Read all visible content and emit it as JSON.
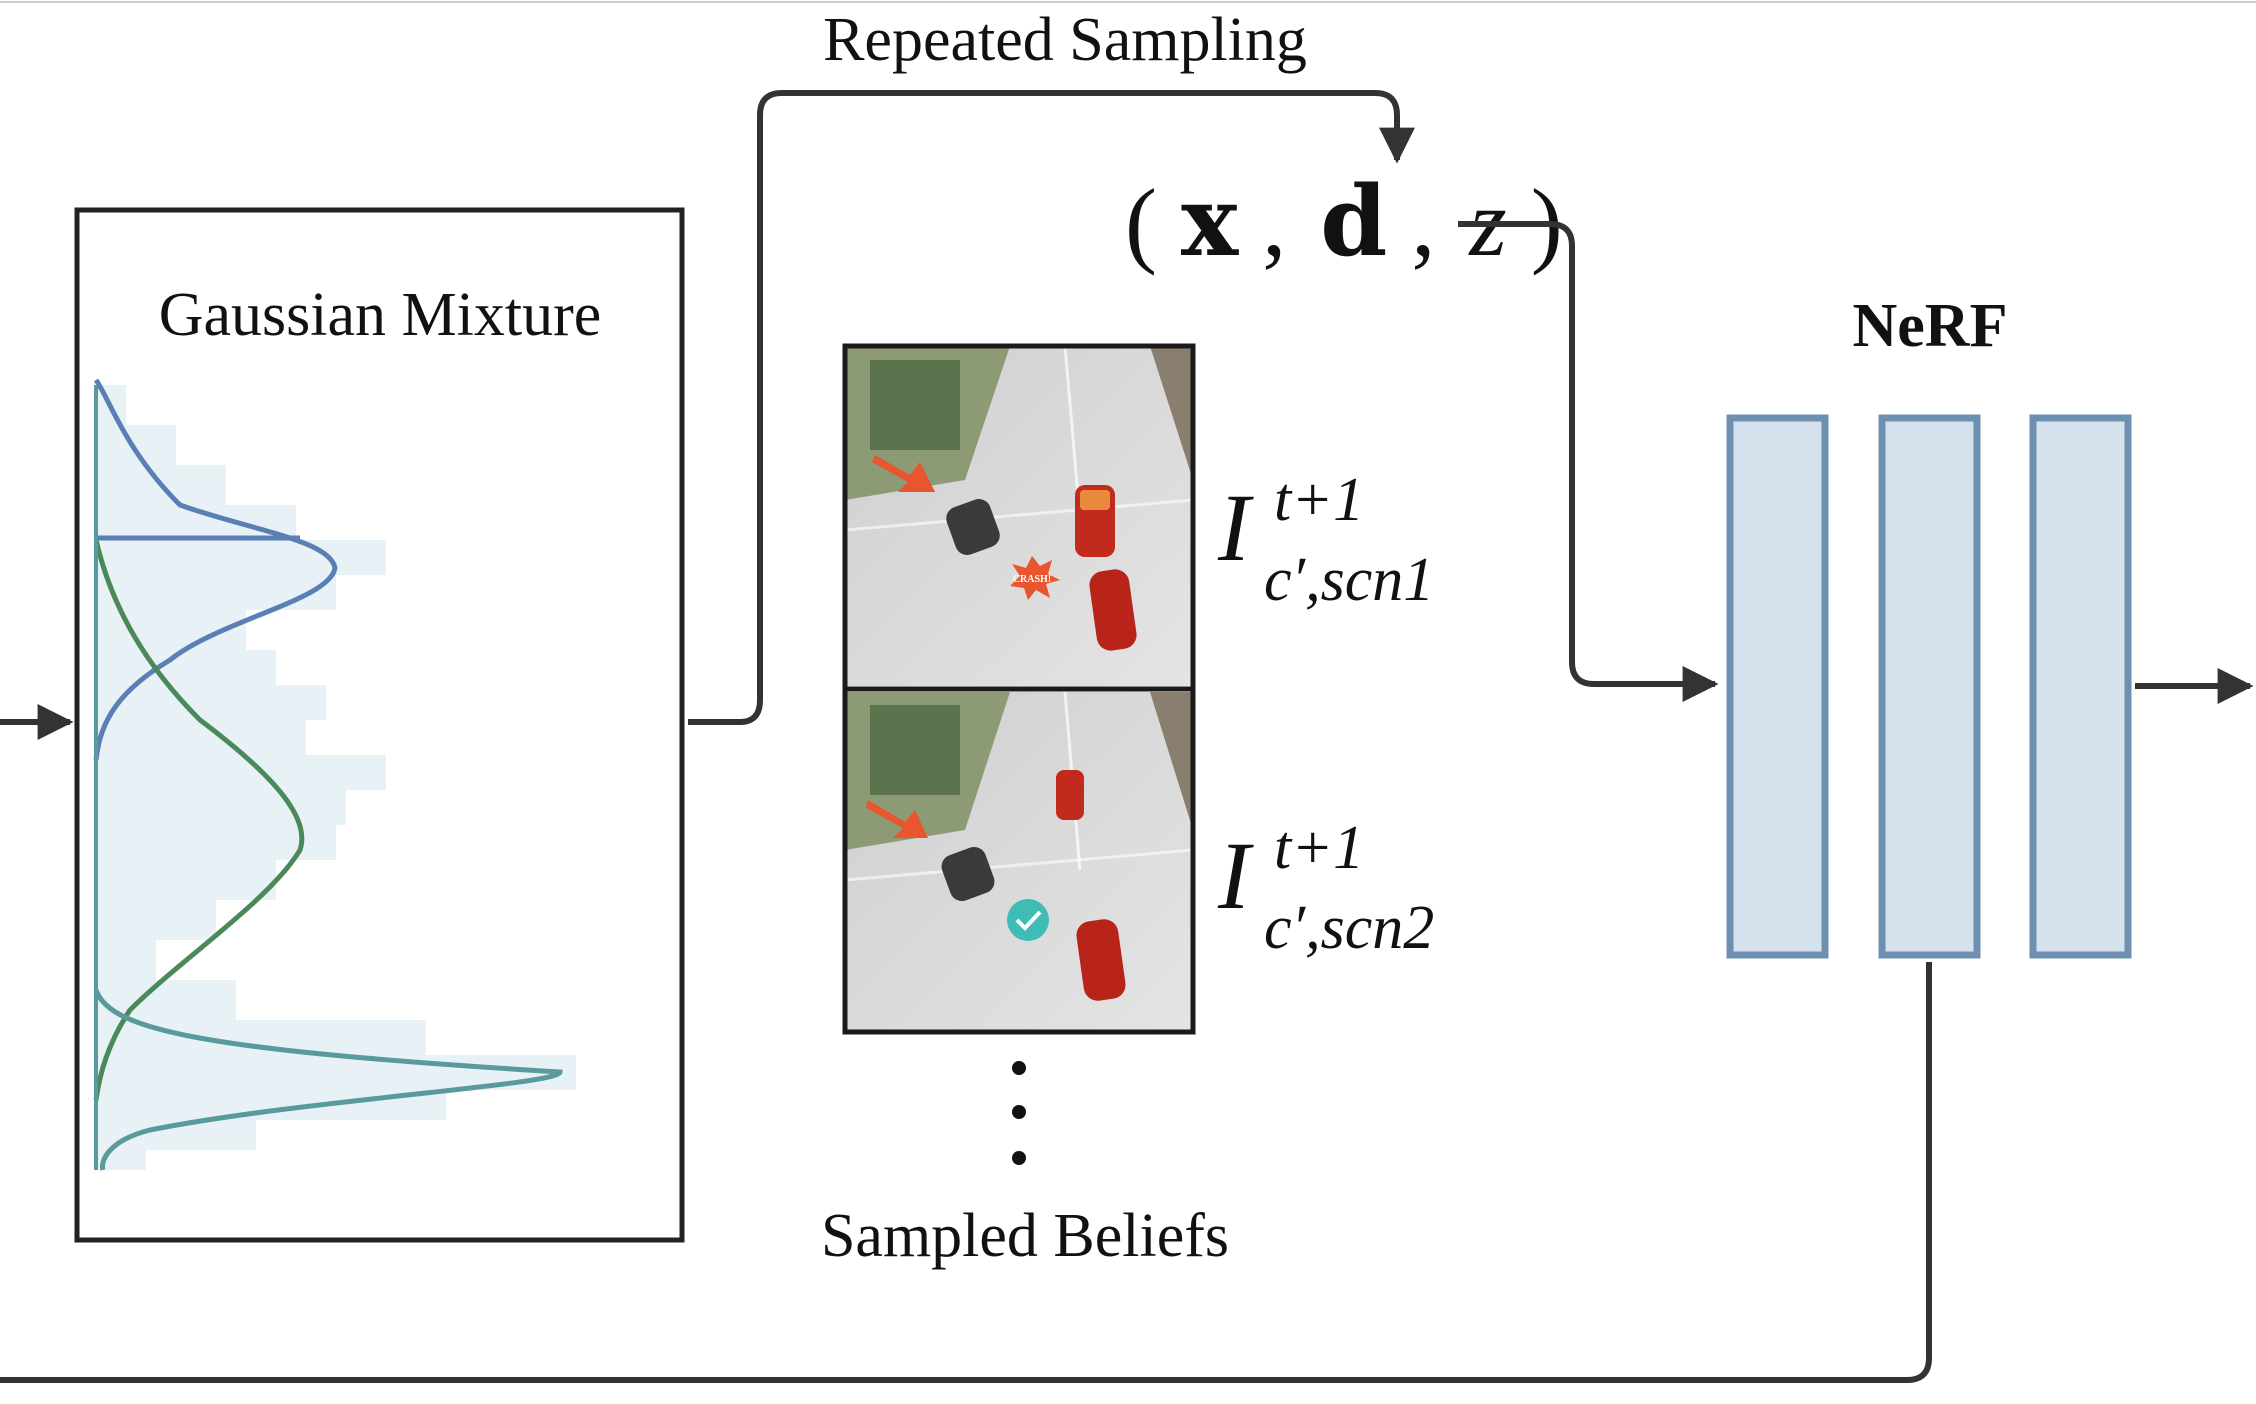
{
  "labels": {
    "repeated_sampling": "Repeated Sampling",
    "gaussian_mixture": "Gaussian Mixture",
    "nerf": "NeRF",
    "sampled_beliefs": "Sampled Beliefs",
    "crash_badge": "CRASH!"
  },
  "math": {
    "paren_open": "(",
    "x": "x",
    "comma1": ",",
    "d": "d",
    "comma2": ",",
    "z": "z",
    "paren_close": ")",
    "image_base": "I",
    "superscript": "t+1",
    "subscript1": "c′,scn1",
    "subscript2": "c′,scn2"
  },
  "ellipsis": "⋮",
  "colors": {
    "stroke": "#333333",
    "nerf_fill": "#d6e1ee",
    "nerf_stroke": "#6d8fb0",
    "hist_fill": "#e8f2f6",
    "curve_blue": "#5a7fb5",
    "curve_green": "#4a8a5a",
    "curve_teal": "#5a9a9c",
    "crash_red": "#e8552e",
    "check_teal": "#3fbcb5"
  }
}
